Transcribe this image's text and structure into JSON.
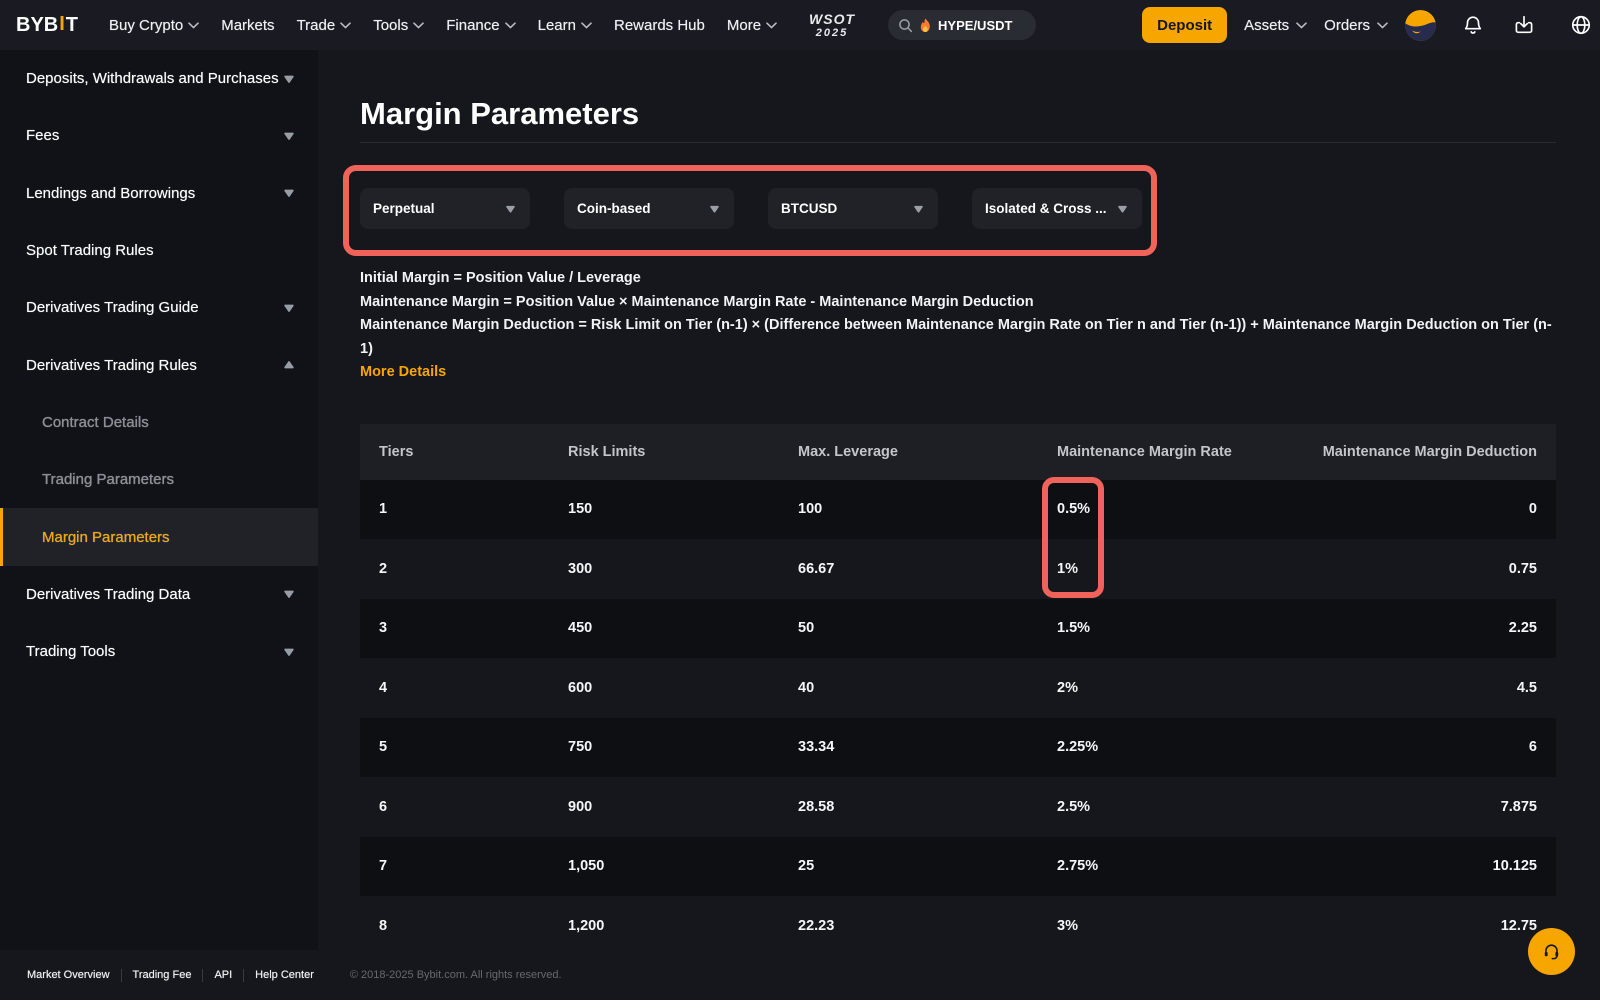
{
  "brand": {
    "logo_pre": "BYB",
    "logo_i": "I",
    "logo_post": "T"
  },
  "navbar": {
    "items": [
      {
        "label": "Buy Crypto",
        "chevron": true
      },
      {
        "label": "Markets",
        "chevron": false
      },
      {
        "label": "Trade",
        "chevron": true
      },
      {
        "label": "Tools",
        "chevron": true
      },
      {
        "label": "Finance",
        "chevron": true
      },
      {
        "label": "Learn",
        "chevron": true
      },
      {
        "label": "Rewards Hub",
        "chevron": false
      },
      {
        "label": "More",
        "chevron": true
      }
    ],
    "wsot": {
      "line1": "WSOT",
      "line2": "2025"
    },
    "search": {
      "value": "HYPE/USDT",
      "icon": "fire-icon"
    },
    "deposit_label": "Deposit",
    "account_items": [
      {
        "label": "Assets",
        "chevron": true
      },
      {
        "label": "Orders",
        "chevron": true
      }
    ],
    "icons": [
      "avatar",
      "bell-icon",
      "download-icon",
      "globe-icon"
    ]
  },
  "sidebar": {
    "items": [
      {
        "label": "Deposits, Withdrawals and Purchases",
        "chevron": "down",
        "sub": false,
        "active": false
      },
      {
        "label": "Fees",
        "chevron": "down",
        "sub": false,
        "active": false
      },
      {
        "label": "Lendings and Borrowings",
        "chevron": "down",
        "sub": false,
        "active": false
      },
      {
        "label": "Spot Trading Rules",
        "chevron": "none",
        "sub": false,
        "active": false
      },
      {
        "label": "Derivatives Trading Guide",
        "chevron": "down",
        "sub": false,
        "active": false
      },
      {
        "label": "Derivatives Trading Rules",
        "chevron": "up",
        "sub": false,
        "active": false
      },
      {
        "label": "Contract Details",
        "chevron": "none",
        "sub": true,
        "active": false
      },
      {
        "label": "Trading Parameters",
        "chevron": "none",
        "sub": true,
        "active": false
      },
      {
        "label": "Margin Parameters",
        "chevron": "none",
        "sub": true,
        "active": true
      },
      {
        "label": "Derivatives Trading Data",
        "chevron": "down",
        "sub": false,
        "active": false
      },
      {
        "label": "Trading Tools",
        "chevron": "down",
        "sub": false,
        "active": false
      }
    ]
  },
  "main": {
    "title": "Margin Parameters",
    "filters": [
      {
        "value": "Perpetual"
      },
      {
        "value": "Coin-based"
      },
      {
        "value": "BTCUSD"
      },
      {
        "value": "Isolated & Cross ..."
      }
    ],
    "formulas": [
      "Initial Margin = Position Value / Leverage",
      "Maintenance Margin = Position Value × Maintenance Margin Rate - Maintenance Margin Deduction",
      "Maintenance Margin Deduction = Risk Limit on Tier (n-1) × (Difference between Maintenance Margin Rate on Tier n and Tier (n-1)) + Maintenance Margin Deduction on Tier (n-1)"
    ],
    "more_details": "More Details"
  },
  "table": {
    "headers": [
      "Tiers",
      "Risk Limits",
      "Max. Leverage",
      "Maintenance Margin Rate",
      "Maintenance Margin Deduction"
    ],
    "rows": [
      [
        "1",
        "150",
        "100",
        "0.5%",
        "0"
      ],
      [
        "2",
        "300",
        "66.67",
        "1%",
        "0.75"
      ],
      [
        "3",
        "450",
        "50",
        "1.5%",
        "2.25"
      ],
      [
        "4",
        "600",
        "40",
        "2%",
        "4.5"
      ],
      [
        "5",
        "750",
        "33.34",
        "2.25%",
        "6"
      ],
      [
        "6",
        "900",
        "28.58",
        "2.5%",
        "7.875"
      ],
      [
        "7",
        "1,050",
        "25",
        "2.75%",
        "10.125"
      ],
      [
        "8",
        "1,200",
        "22.23",
        "3%",
        "12.75"
      ]
    ]
  },
  "footer": {
    "links": [
      "Market Overview",
      "Trading Fee",
      "API",
      "Help Center"
    ],
    "copyright": "© 2018-2025 Bybit.com. All rights reserved."
  },
  "colors": {
    "accent": "#f7a600",
    "annotation": "#ef6a57"
  }
}
